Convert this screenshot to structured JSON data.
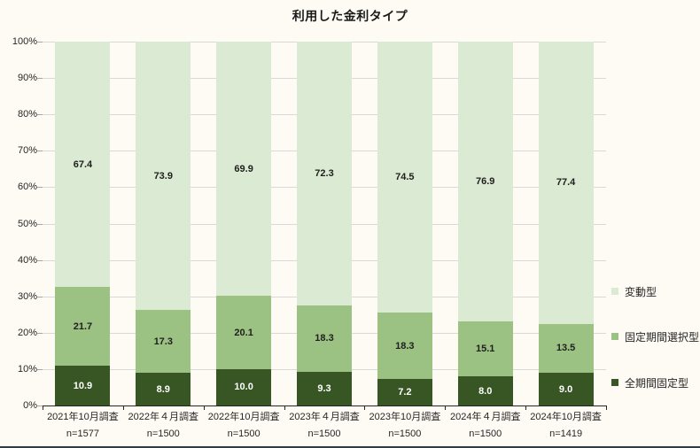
{
  "chart_data": {
    "type": "stacked_bar",
    "title": "利用した金利タイプ",
    "categories": [
      "2021年10月調査",
      "2022年４月調査",
      "2022年10月調査",
      "2023年４月調査",
      "2023年10月調査",
      "2024年４月調査",
      "2024年10月調査"
    ],
    "sample_sizes": [
      "n=1577",
      "n=1500",
      "n=1500",
      "n=1500",
      "n=1500",
      "n=1500",
      "n=1419"
    ],
    "series": [
      {
        "name": "変動型",
        "color": "#dbead2",
        "label_color": "#1f1f1f",
        "values": [
          67.4,
          73.9,
          69.9,
          72.3,
          74.5,
          76.9,
          77.4
        ]
      },
      {
        "name": "固定期間選択型",
        "color": "#9cc283",
        "label_color": "#1f1f1f",
        "values": [
          21.7,
          17.3,
          20.1,
          18.3,
          18.3,
          15.1,
          13.5
        ]
      },
      {
        "name": "全期間固定型",
        "color": "#375623",
        "label_color": "#ffffff",
        "values": [
          10.9,
          8.9,
          10.0,
          9.3,
          7.2,
          8.0,
          9.0
        ]
      }
    ],
    "y_axis": {
      "min": 0,
      "max": 100,
      "step": 10,
      "tick_labels": [
        "0%",
        "10%",
        "20%",
        "30%",
        "40%",
        "50%",
        "60%",
        "70%",
        "80%",
        "90%",
        "100%"
      ]
    },
    "legend": {
      "position": "right",
      "entries": [
        "変動型",
        "固定期間選択型",
        "全期間固定型"
      ]
    },
    "grid": true
  },
  "colors": {
    "background": "#fdfbf4",
    "gridline": "#d9d9d9",
    "axis": "#262626",
    "bottom_divider": "#323a45"
  }
}
